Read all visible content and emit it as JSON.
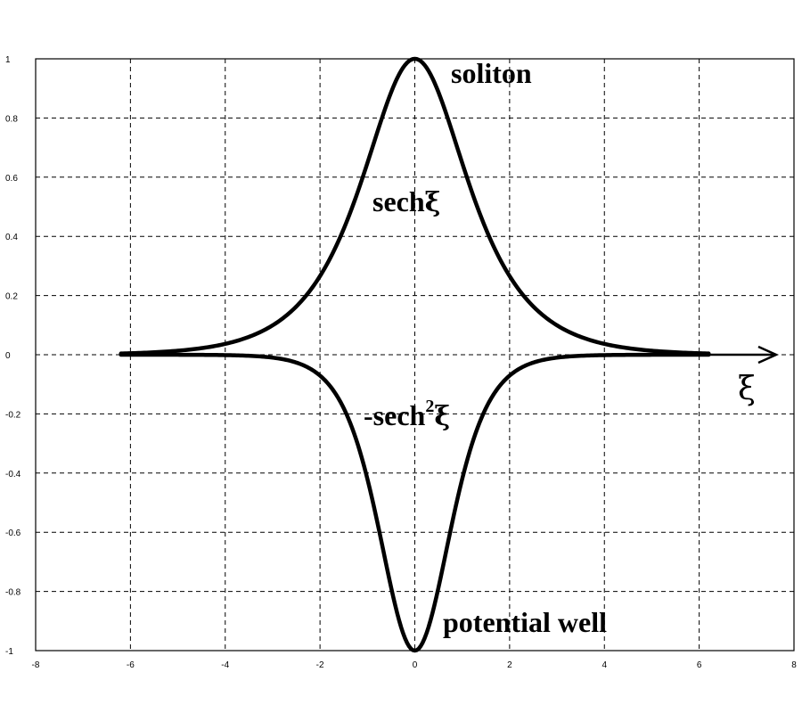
{
  "chart_data": {
    "type": "line",
    "title": "",
    "xlabel": "ξ",
    "ylabel": "",
    "xlim": [
      -8,
      8
    ],
    "ylim": [
      -1,
      1
    ],
    "grid": true,
    "x_ticks": [
      "-8",
      "-6",
      "-4",
      "-2",
      "0",
      "2",
      "4",
      "6",
      "8"
    ],
    "y_ticks": [
      "1",
      "0.8",
      "0.6",
      "0.4",
      "0.2",
      "0",
      "-0.2",
      "-0.4",
      "-0.6",
      "-0.8",
      "-1"
    ],
    "x_range_curves": [
      -6.2,
      6.2
    ],
    "series": [
      {
        "label": "sechξ",
        "function": "sech(x)"
      },
      {
        "label": "-sech²ξ",
        "function": "-sech(x)^2"
      }
    ],
    "annotations": {
      "soliton": "soliton",
      "sech_base": "sech",
      "sech_xi": "ξ",
      "neg_sech_base": "-sech",
      "neg_sech_sup": "2",
      "neg_sech_xi": "ξ",
      "potential_well": "potential well"
    }
  }
}
